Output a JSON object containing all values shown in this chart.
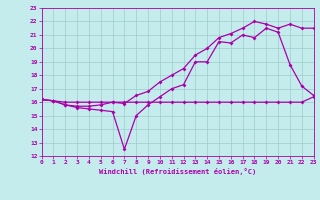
{
  "xlim": [
    0,
    23
  ],
  "ylim": [
    12,
    23
  ],
  "x_ticks": [
    0,
    1,
    2,
    3,
    4,
    5,
    6,
    7,
    8,
    9,
    10,
    11,
    12,
    13,
    14,
    15,
    16,
    17,
    18,
    19,
    20,
    21,
    22,
    23
  ],
  "y_ticks": [
    12,
    13,
    14,
    15,
    16,
    17,
    18,
    19,
    20,
    21,
    22,
    23
  ],
  "xlabel": "Windchill (Refroidissement éolien,°C)",
  "bg_color": "#c5eced",
  "line_color": "#aa00aa",
  "grid_color": "#9dcbcb",
  "line1_x": [
    0,
    1,
    2,
    3,
    4,
    5,
    6,
    7,
    8,
    9,
    10,
    11,
    12,
    13,
    14,
    15,
    16,
    17,
    18,
    19,
    20,
    21,
    22,
    23
  ],
  "line1_y": [
    16.2,
    16.1,
    15.8,
    15.6,
    15.5,
    15.4,
    15.3,
    12.5,
    15.0,
    15.8,
    16.4,
    17.0,
    17.3,
    19.0,
    19.0,
    20.5,
    20.4,
    21.0,
    20.8,
    21.5,
    21.2,
    18.8,
    17.2,
    16.5
  ],
  "line2_x": [
    0,
    1,
    2,
    3,
    4,
    5,
    6,
    7,
    8,
    9,
    10,
    11,
    12,
    13,
    14,
    15,
    16,
    17,
    18,
    19,
    20,
    21,
    22,
    23
  ],
  "line2_y": [
    16.2,
    16.1,
    15.8,
    15.7,
    15.7,
    15.8,
    16.0,
    15.9,
    16.5,
    16.8,
    17.5,
    18.0,
    18.5,
    19.5,
    20.0,
    20.8,
    21.1,
    21.5,
    22.0,
    21.8,
    21.5,
    21.8,
    21.5,
    21.5
  ],
  "line3_x": [
    0,
    1,
    2,
    3,
    4,
    5,
    6,
    7,
    8,
    9,
    10,
    11,
    12,
    13,
    14,
    15,
    16,
    17,
    18,
    19,
    20,
    21,
    22,
    23
  ],
  "line3_y": [
    16.2,
    16.1,
    16.0,
    16.0,
    16.0,
    16.0,
    16.0,
    16.0,
    16.0,
    16.0,
    16.0,
    16.0,
    16.0,
    16.0,
    16.0,
    16.0,
    16.0,
    16.0,
    16.0,
    16.0,
    16.0,
    16.0,
    16.0,
    16.4
  ],
  "lw": 0.9,
  "markersize": 2.0,
  "tick_fontsize": 4.5,
  "label_fontsize": 5.0
}
